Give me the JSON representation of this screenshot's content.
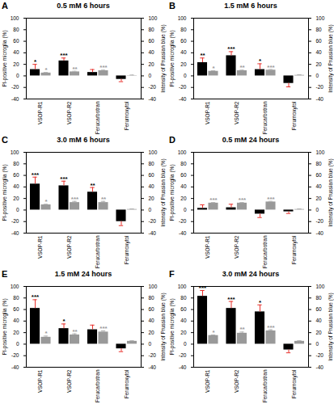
{
  "chart_data": [
    {
      "type": "bar",
      "panel": "A",
      "title": "0.5 mM 6 hours",
      "categories": [
        "VSOP-R1",
        "VSOP-R2",
        "Ferucarbotran",
        "Ferumoxytol"
      ],
      "y_label": "PI-positive microglia (%)",
      "y2_label": "Intensity of Prussian blue (%)",
      "ylim": [
        -40,
        100
      ],
      "yticks": [
        -40,
        -20,
        0,
        20,
        40,
        60,
        80,
        100
      ],
      "y2lim": [
        -40,
        100
      ],
      "y2ticks": [
        -40,
        -20,
        0,
        20,
        40,
        60,
        80,
        100
      ],
      "grid": false,
      "series": [
        {
          "color": "#000000",
          "values": [
            11,
            26,
            6,
            -6
          ],
          "errors": [
            9,
            5,
            5,
            4
          ],
          "significance": [
            "*",
            "***",
            null,
            null
          ]
        },
        {
          "color": "#999999",
          "axis": "y2",
          "values": [
            5,
            7,
            9,
            0.5
          ],
          "errors": [
            1,
            1,
            1,
            1
          ],
          "significance": [
            "*",
            "**",
            "***",
            null
          ]
        }
      ]
    },
    {
      "type": "bar",
      "panel": "B",
      "title": "1.5 mM 6 hours",
      "categories": [
        "VSOP-R1",
        "VSOP-R2",
        "Ferucarbotran",
        "Ferumoxytol"
      ],
      "y_label": "PI-positive microglia (%)",
      "y2_label": "Intensity of Prussian blue (%)",
      "ylim": [
        -40,
        100
      ],
      "yticks": [
        -40,
        -20,
        0,
        20,
        40,
        60,
        80,
        100
      ],
      "y2lim": [
        -40,
        100
      ],
      "y2ticks": [
        -40,
        -20,
        0,
        20,
        40,
        60,
        80,
        100
      ],
      "grid": false,
      "series": [
        {
          "color": "#000000",
          "values": [
            23,
            35,
            11,
            -13
          ],
          "errors": [
            8,
            7,
            10,
            6
          ],
          "significance": [
            "**",
            "***",
            "*",
            null
          ]
        },
        {
          "color": "#999999",
          "axis": "y2",
          "values": [
            8,
            9,
            10,
            1
          ],
          "errors": [
            1,
            1,
            1,
            1
          ],
          "significance": [
            "*",
            "**",
            "***",
            null
          ]
        }
      ]
    },
    {
      "type": "bar",
      "panel": "C",
      "title": "3.0 mM 6 hours",
      "categories": [
        "VSOP-R1",
        "VSOP-R2",
        "Ferucarbotran",
        "Ferumoxytol"
      ],
      "y_label": "PI-positive microglia (%)",
      "y2_label": "Intensity of Prussian blue (%)",
      "ylim": [
        -40,
        100
      ],
      "yticks": [
        -40,
        -20,
        0,
        20,
        40,
        60,
        80,
        100
      ],
      "y2lim": [
        -40,
        100
      ],
      "y2ticks": [
        -40,
        -20,
        0,
        20,
        40,
        60,
        80,
        100
      ],
      "grid": false,
      "series": [
        {
          "color": "#000000",
          "values": [
            45,
            42,
            31,
            -20
          ],
          "errors": [
            12,
            8,
            8,
            7
          ],
          "significance": [
            "***",
            "***",
            "**",
            null
          ]
        },
        {
          "color": "#999999",
          "axis": "y2",
          "values": [
            9,
            13,
            13,
            1
          ],
          "errors": [
            1,
            2,
            2,
            1
          ],
          "significance": [
            "*",
            "***",
            "**",
            null
          ]
        }
      ]
    },
    {
      "type": "bar",
      "panel": "D",
      "title": "0.5 mM 24 hours",
      "categories": [
        "VSOP-R1",
        "VSOP-R2",
        "Ferucarbotran",
        "Ferumoxytol"
      ],
      "y_label": "PI-positive microglia (%)",
      "y2_label": "Intensity of Prussian blue (%)",
      "ylim": [
        -40,
        100
      ],
      "yticks": [
        -40,
        -20,
        0,
        20,
        40,
        60,
        80,
        100
      ],
      "y2lim": [
        -40,
        100
      ],
      "y2ticks": [
        -40,
        -20,
        0,
        20,
        40,
        60,
        80,
        100
      ],
      "grid": false,
      "series": [
        {
          "color": "#000000",
          "values": [
            3,
            4,
            -7,
            -3
          ],
          "errors": [
            6,
            6,
            6,
            3
          ],
          "significance": [
            null,
            null,
            null,
            null
          ]
        },
        {
          "color": "#999999",
          "axis": "y2",
          "values": [
            12,
            12,
            14,
            1
          ],
          "errors": [
            1,
            1,
            1,
            1
          ],
          "significance": [
            "***",
            "***",
            "***",
            null
          ]
        }
      ]
    },
    {
      "type": "bar",
      "panel": "E",
      "title": "1.5 mM 24 hours",
      "categories": [
        "VSOP-R1",
        "VSOP-R2",
        "Ferucarbotran",
        "Ferumoxytol"
      ],
      "y_label": "PI-positive microglia (%)",
      "y2_label": "Intensity of Prussian blue (%)",
      "ylim": [
        -40,
        100
      ],
      "yticks": [
        -40,
        -20,
        0,
        20,
        40,
        60,
        80,
        100
      ],
      "y2lim": [
        -40,
        100
      ],
      "y2ticks": [
        -40,
        -20,
        0,
        20,
        40,
        60,
        80,
        100
      ],
      "grid": false,
      "series": [
        {
          "color": "#000000",
          "values": [
            62,
            27,
            25,
            -8
          ],
          "errors": [
            15,
            8,
            8,
            5
          ],
          "significance": [
            "***",
            "*",
            null,
            null
          ]
        },
        {
          "color": "#999999",
          "axis": "y2",
          "values": [
            12,
            16,
            21,
            5
          ],
          "errors": [
            2,
            2,
            2,
            1
          ],
          "significance": [
            "*",
            "**",
            "***",
            null
          ]
        }
      ]
    },
    {
      "type": "bar",
      "panel": "F",
      "title": "3.0 mM 24 hours",
      "categories": [
        "VSOP-R1",
        "VSOP-R2",
        "Ferucarbotran",
        "Ferumoxytol"
      ],
      "y_label": "PI-positive microglia (%)",
      "y2_label": "Intensity of Prussian blue (%)",
      "ylim": [
        -40,
        100
      ],
      "yticks": [
        -40,
        -20,
        0,
        20,
        40,
        60,
        80,
        100
      ],
      "y2lim": [
        -40,
        100
      ],
      "y2ticks": [
        -40,
        -20,
        0,
        20,
        40,
        60,
        80,
        100
      ],
      "grid": false,
      "series": [
        {
          "color": "#000000",
          "values": [
            83,
            62,
            56,
            -10
          ],
          "errors": [
            10,
            12,
            12,
            5
          ],
          "significance": [
            "***",
            "***",
            "*",
            null
          ]
        },
        {
          "color": "#999999",
          "axis": "y2",
          "values": [
            15,
            19,
            23,
            5
          ],
          "errors": [
            1,
            2,
            2,
            1
          ],
          "significance": [
            "*",
            "**",
            "***",
            null
          ]
        }
      ]
    }
  ]
}
